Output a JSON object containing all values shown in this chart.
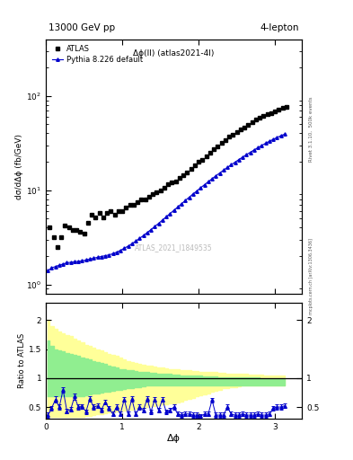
{
  "title_left": "13000 GeV pp",
  "title_right": "4-lepton",
  "main_label": "Δϕ(ll) (atlas2021-4l)",
  "watermark": "ATLAS_2021_I1849535",
  "ylabel_main": "dσ/dΔϕ (fb/GeV)",
  "ylabel_ratio": "Ratio to ATLAS",
  "xlabel": "Δϕ",
  "rivet_label": "Rivet 3.1.10,  500k events",
  "arxiv_label": "mcplots.cern.ch [arXiv:1306.3436]",
  "atlas_color": "black",
  "pythia_color": "#0000cc",
  "band_green_color": "#90ee90",
  "band_yellow_color": "#ffff99",
  "ylim_main": [
    0.8,
    400
  ],
  "ylim_ratio": [
    0.3,
    2.3
  ],
  "xlim": [
    0.0,
    3.35
  ],
  "atlas_x": [
    0.05,
    0.1,
    0.15,
    0.2,
    0.25,
    0.3,
    0.35,
    0.4,
    0.45,
    0.5,
    0.55,
    0.6,
    0.65,
    0.7,
    0.75,
    0.8,
    0.85,
    0.9,
    0.95,
    1.0,
    1.05,
    1.1,
    1.15,
    1.2,
    1.25,
    1.3,
    1.35,
    1.4,
    1.45,
    1.5,
    1.55,
    1.6,
    1.65,
    1.7,
    1.75,
    1.8,
    1.85,
    1.9,
    1.95,
    2.0,
    2.05,
    2.1,
    2.15,
    2.2,
    2.25,
    2.3,
    2.35,
    2.4,
    2.45,
    2.5,
    2.55,
    2.6,
    2.65,
    2.7,
    2.75,
    2.8,
    2.85,
    2.9,
    2.95,
    3.0,
    3.05,
    3.1,
    3.15
  ],
  "atlas_y": [
    4.0,
    3.2,
    2.5,
    3.2,
    4.2,
    4.0,
    3.8,
    3.8,
    3.6,
    3.5,
    4.5,
    5.5,
    5.2,
    5.8,
    5.2,
    5.8,
    6.0,
    5.5,
    6.0,
    6.0,
    6.5,
    7.0,
    7.0,
    7.5,
    8.0,
    8.0,
    8.5,
    9.0,
    9.5,
    10.0,
    10.5,
    11.5,
    12.0,
    12.5,
    13.5,
    14.5,
    15.5,
    17.0,
    18.5,
    20.0,
    21.0,
    23.0,
    25.0,
    27.0,
    29.0,
    31.5,
    34.0,
    37.0,
    39.0,
    41.0,
    44.0,
    46.0,
    49.0,
    53.0,
    56.0,
    59.0,
    61.0,
    64.0,
    66.0,
    69.0,
    71.0,
    74.0,
    76.0
  ],
  "pythia_x": [
    0.025,
    0.075,
    0.125,
    0.175,
    0.225,
    0.275,
    0.325,
    0.375,
    0.425,
    0.475,
    0.525,
    0.575,
    0.625,
    0.675,
    0.725,
    0.775,
    0.825,
    0.875,
    0.925,
    0.975,
    1.025,
    1.075,
    1.125,
    1.175,
    1.225,
    1.275,
    1.325,
    1.375,
    1.425,
    1.475,
    1.525,
    1.575,
    1.625,
    1.675,
    1.725,
    1.775,
    1.825,
    1.875,
    1.925,
    1.975,
    2.025,
    2.075,
    2.125,
    2.175,
    2.225,
    2.275,
    2.325,
    2.375,
    2.425,
    2.475,
    2.525,
    2.575,
    2.625,
    2.675,
    2.725,
    2.775,
    2.825,
    2.875,
    2.925,
    2.975,
    3.025,
    3.075,
    3.125
  ],
  "pythia_y": [
    1.4,
    1.5,
    1.55,
    1.6,
    1.65,
    1.7,
    1.72,
    1.74,
    1.76,
    1.78,
    1.82,
    1.86,
    1.9,
    1.94,
    1.98,
    2.02,
    2.06,
    2.12,
    2.2,
    2.3,
    2.42,
    2.55,
    2.7,
    2.88,
    3.08,
    3.3,
    3.55,
    3.82,
    4.12,
    4.45,
    4.82,
    5.22,
    5.65,
    6.12,
    6.62,
    7.18,
    7.78,
    8.42,
    9.1,
    9.82,
    10.6,
    11.42,
    12.3,
    13.22,
    14.2,
    15.22,
    16.3,
    17.42,
    18.6,
    19.82,
    21.1,
    22.42,
    23.8,
    25.22,
    26.7,
    28.22,
    29.8,
    31.42,
    33.0,
    34.6,
    36.2,
    37.8,
    39.2
  ],
  "ratio_x": [
    0.025,
    0.075,
    0.125,
    0.175,
    0.225,
    0.275,
    0.325,
    0.375,
    0.425,
    0.475,
    0.525,
    0.575,
    0.625,
    0.675,
    0.725,
    0.775,
    0.825,
    0.875,
    0.925,
    0.975,
    1.025,
    1.075,
    1.125,
    1.175,
    1.225,
    1.275,
    1.325,
    1.375,
    1.425,
    1.475,
    1.525,
    1.575,
    1.625,
    1.675,
    1.725,
    1.775,
    1.825,
    1.875,
    1.925,
    1.975,
    2.025,
    2.075,
    2.125,
    2.175,
    2.225,
    2.275,
    2.325,
    2.375,
    2.425,
    2.475,
    2.525,
    2.575,
    2.625,
    2.675,
    2.725,
    2.775,
    2.825,
    2.875,
    2.925,
    2.975,
    3.025,
    3.075,
    3.125
  ],
  "ratio_y": [
    0.36,
    0.48,
    0.63,
    0.5,
    0.8,
    0.43,
    0.46,
    0.68,
    0.5,
    0.51,
    0.42,
    0.64,
    0.5,
    0.52,
    0.45,
    0.58,
    0.48,
    0.38,
    0.5,
    0.38,
    0.63,
    0.38,
    0.64,
    0.38,
    0.5,
    0.44,
    0.64,
    0.42,
    0.63,
    0.44,
    0.63,
    0.42,
    0.44,
    0.5,
    0.38,
    0.36,
    0.38,
    0.38,
    0.36,
    0.36,
    0.34,
    0.38,
    0.38,
    0.62,
    0.36,
    0.36,
    0.36,
    0.5,
    0.38,
    0.36,
    0.36,
    0.38,
    0.36,
    0.36,
    0.36,
    0.38,
    0.36,
    0.36,
    0.38,
    0.48,
    0.5,
    0.5,
    0.52
  ],
  "ratio_yerr": [
    0.04,
    0.04,
    0.05,
    0.04,
    0.05,
    0.04,
    0.04,
    0.05,
    0.04,
    0.04,
    0.04,
    0.04,
    0.04,
    0.04,
    0.04,
    0.04,
    0.04,
    0.04,
    0.04,
    0.04,
    0.04,
    0.04,
    0.04,
    0.04,
    0.04,
    0.04,
    0.04,
    0.04,
    0.04,
    0.04,
    0.04,
    0.04,
    0.04,
    0.04,
    0.04,
    0.04,
    0.04,
    0.04,
    0.04,
    0.04,
    0.04,
    0.04,
    0.04,
    0.04,
    0.04,
    0.04,
    0.04,
    0.04,
    0.04,
    0.04,
    0.04,
    0.04,
    0.04,
    0.04,
    0.04,
    0.04,
    0.04,
    0.04,
    0.04,
    0.04,
    0.04,
    0.04,
    0.04
  ],
  "band_yellow_lo": [
    0.33,
    0.33,
    0.33,
    0.33,
    0.33,
    0.33,
    0.33,
    0.33,
    0.33,
    0.33,
    0.34,
    0.35,
    0.36,
    0.37,
    0.38,
    0.39,
    0.4,
    0.41,
    0.42,
    0.43,
    0.44,
    0.45,
    0.46,
    0.47,
    0.48,
    0.49,
    0.5,
    0.51,
    0.52,
    0.53,
    0.54,
    0.55,
    0.56,
    0.57,
    0.58,
    0.6,
    0.62,
    0.64,
    0.66,
    0.68,
    0.7,
    0.72,
    0.74,
    0.76,
    0.78,
    0.8,
    0.82,
    0.83,
    0.84,
    0.85,
    0.86,
    0.87,
    0.88,
    0.88,
    0.88,
    0.88,
    0.88,
    0.88,
    0.88,
    0.88,
    0.88,
    0.88,
    0.88
  ],
  "band_yellow_hi": [
    2.0,
    1.9,
    1.85,
    1.8,
    1.78,
    1.75,
    1.72,
    1.68,
    1.65,
    1.62,
    1.58,
    1.55,
    1.52,
    1.5,
    1.48,
    1.45,
    1.42,
    1.4,
    1.38,
    1.35,
    1.32,
    1.3,
    1.28,
    1.26,
    1.25,
    1.23,
    1.22,
    1.21,
    1.2,
    1.19,
    1.18,
    1.17,
    1.16,
    1.15,
    1.15,
    1.14,
    1.13,
    1.13,
    1.12,
    1.12,
    1.11,
    1.11,
    1.1,
    1.1,
    1.1,
    1.09,
    1.09,
    1.08,
    1.08,
    1.08,
    1.07,
    1.07,
    1.07,
    1.06,
    1.06,
    1.06,
    1.06,
    1.05,
    1.05,
    1.05,
    1.05,
    1.04,
    1.04
  ],
  "band_green_lo": [
    0.68,
    0.68,
    0.68,
    0.68,
    0.68,
    0.68,
    0.68,
    0.68,
    0.68,
    0.68,
    0.7,
    0.72,
    0.73,
    0.74,
    0.75,
    0.76,
    0.77,
    0.78,
    0.79,
    0.8,
    0.81,
    0.82,
    0.83,
    0.84,
    0.85,
    0.86,
    0.87,
    0.88,
    0.88,
    0.88,
    0.88,
    0.88,
    0.88,
    0.88,
    0.88,
    0.88,
    0.88,
    0.88,
    0.88,
    0.88,
    0.88,
    0.88,
    0.88,
    0.88,
    0.88,
    0.88,
    0.88,
    0.88,
    0.88,
    0.88,
    0.88,
    0.88,
    0.88,
    0.88,
    0.88,
    0.88,
    0.88,
    0.88,
    0.88,
    0.88,
    0.88,
    0.88,
    0.88
  ],
  "band_green_hi": [
    1.65,
    1.55,
    1.5,
    1.48,
    1.46,
    1.44,
    1.42,
    1.4,
    1.38,
    1.36,
    1.34,
    1.32,
    1.3,
    1.28,
    1.26,
    1.24,
    1.22,
    1.2,
    1.18,
    1.16,
    1.15,
    1.14,
    1.13,
    1.12,
    1.11,
    1.1,
    1.1,
    1.09,
    1.09,
    1.08,
    1.08,
    1.07,
    1.07,
    1.06,
    1.06,
    1.05,
    1.05,
    1.05,
    1.04,
    1.04,
    1.04,
    1.03,
    1.03,
    1.03,
    1.03,
    1.02,
    1.02,
    1.02,
    1.02,
    1.02,
    1.01,
    1.01,
    1.01,
    1.01,
    1.01,
    1.01,
    1.0,
    1.0,
    1.0,
    1.0,
    1.0,
    1.0,
    1.0
  ]
}
